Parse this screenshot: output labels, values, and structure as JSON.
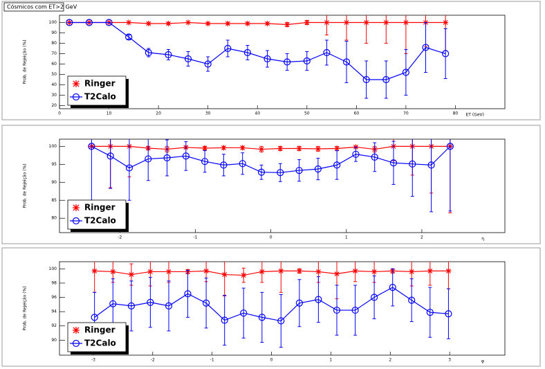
{
  "chart_data": [
    {
      "type": "line",
      "title": "Cósmicos com ET>2 GeV",
      "y_label": "Prob. de Rejeição (%)",
      "x_label": "ET (GeV)",
      "x": [
        2,
        6,
        10,
        14,
        18,
        22,
        26,
        30,
        34,
        38,
        42,
        46,
        50,
        54,
        58,
        62,
        66,
        70,
        74,
        78
      ],
      "xlim": [
        0,
        90
      ],
      "xticks": [
        0,
        10,
        20,
        30,
        40,
        50,
        60,
        70,
        80
      ],
      "ylim": [
        17,
        107
      ],
      "yticks": [
        20,
        30,
        40,
        50,
        60,
        70,
        80,
        90,
        100
      ],
      "legend": "lower left",
      "series": [
        {
          "name": "Ringer",
          "color": "#ff0000",
          "marker": "star",
          "values": [
            100,
            100,
            100,
            100,
            99,
            99,
            100,
            99,
            99,
            99,
            99,
            98,
            100,
            100,
            100,
            100,
            100,
            100,
            100,
            100
          ],
          "errors": [
            0,
            0,
            0,
            0,
            1,
            1,
            0,
            1,
            1,
            1,
            1,
            2,
            2,
            12,
            17,
            20,
            20,
            30,
            23,
            27
          ]
        },
        {
          "name": "T2Calo",
          "color": "#0000ff",
          "marker": "circle",
          "values": [
            100,
            100,
            100,
            86,
            71,
            69,
            65,
            60,
            75,
            71,
            65,
            62,
            63,
            71,
            62,
            45,
            45,
            52,
            76,
            70
          ],
          "errors": [
            0,
            0,
            0,
            2,
            4,
            5,
            7,
            7,
            8,
            7,
            8,
            8,
            9,
            12,
            20,
            18,
            18,
            22,
            24,
            24
          ]
        }
      ]
    },
    {
      "type": "line",
      "y_label": "Prob. de Rejeição (%)",
      "x_label": "η",
      "x": [
        -2.375,
        -2.125,
        -1.875,
        -1.625,
        -1.375,
        -1.125,
        -0.875,
        -0.625,
        -0.375,
        -0.125,
        0.125,
        0.375,
        0.625,
        0.875,
        1.125,
        1.375,
        1.625,
        1.875,
        2.125,
        2.375
      ],
      "xlim": [
        -2.8,
        3.1
      ],
      "xticks": [
        -2,
        -1,
        0,
        1,
        2
      ],
      "ylim": [
        76,
        102
      ],
      "yticks": [
        80,
        85,
        90,
        95,
        100
      ],
      "legend": "lower left",
      "series": [
        {
          "name": "Ringer",
          "color": "#ff0000",
          "marker": "star",
          "values": [
            100,
            100,
            100,
            99.5,
            99.2,
            99.7,
            99.5,
            99.6,
            99.6,
            99.2,
            99.4,
            99.4,
            99.3,
            99.4,
            99.8,
            99.2,
            100,
            100,
            100,
            100
          ],
          "errors": [
            0,
            11.5,
            8.5,
            0.5,
            0.8,
            0.3,
            0.5,
            0.4,
            0.4,
            0.8,
            0.6,
            0.6,
            0.7,
            0.6,
            0.2,
            0.8,
            4,
            8,
            13,
            18.5
          ]
        },
        {
          "name": "T2Calo",
          "color": "#0000ff",
          "marker": "circle",
          "values": [
            100,
            97.3,
            94,
            96.5,
            96.8,
            97.3,
            95.8,
            94.8,
            95.2,
            92.8,
            92.7,
            93.3,
            93.7,
            94.8,
            97.8,
            97,
            95.4,
            95.1,
            94.8,
            100
          ],
          "errors": [
            15,
            9,
            9,
            6,
            5,
            4,
            3,
            3,
            3,
            2,
            2.5,
            3,
            3,
            4,
            2,
            4,
            6,
            9,
            13,
            18
          ]
        }
      ]
    },
    {
      "type": "line",
      "y_label": "Prob. de Rejeição (%)",
      "x_label": "φ",
      "x": [
        -2.98,
        -2.67,
        -2.36,
        -2.04,
        -1.73,
        -1.41,
        -1.1,
        -0.79,
        -0.47,
        -0.16,
        0.16,
        0.47,
        0.79,
        1.1,
        1.41,
        1.73,
        2.04,
        2.36,
        2.67,
        2.98
      ],
      "xlim": [
        -3.57,
        3.93
      ],
      "xticks": [
        -3,
        -2,
        -1,
        0,
        1,
        2,
        3
      ],
      "ylim": [
        87.9,
        101
      ],
      "yticks": [
        90,
        92,
        94,
        96,
        98,
        100
      ],
      "legend": "lower left",
      "series": [
        {
          "name": "Ringer",
          "color": "#ff0000",
          "marker": "star",
          "values": [
            99.7,
            99.6,
            99.2,
            99.6,
            99.6,
            99.6,
            99.7,
            99.2,
            99.1,
            99.6,
            99.7,
            99.7,
            99.6,
            99.3,
            99.7,
            99.6,
            99.7,
            99.6,
            99.7,
            99.7
          ],
          "errors": [
            3,
            1.5,
            1.5,
            2,
            1.5,
            0.3,
            1.5,
            3,
            1,
            1.5,
            3,
            0.3,
            1.5,
            3.5,
            1.5,
            1.5,
            0.3,
            2,
            2,
            2.5
          ]
        },
        {
          "name": "T2Calo",
          "color": "#0000ff",
          "marker": "circle",
          "values": [
            93.2,
            95.1,
            94.8,
            95.3,
            94.8,
            96.5,
            95.2,
            92.8,
            93.8,
            93.2,
            92.7,
            95.2,
            95.7,
            94.2,
            94.2,
            96,
            97.4,
            95.6,
            93.9,
            93.7
          ],
          "errors": [
            3.5,
            3.5,
            3.5,
            3.5,
            3.5,
            3.3,
            3.5,
            3.5,
            3.5,
            3.5,
            3.7,
            3.3,
            3.2,
            3.5,
            3.5,
            3,
            2.6,
            3,
            3.5,
            3.5
          ]
        }
      ]
    }
  ]
}
